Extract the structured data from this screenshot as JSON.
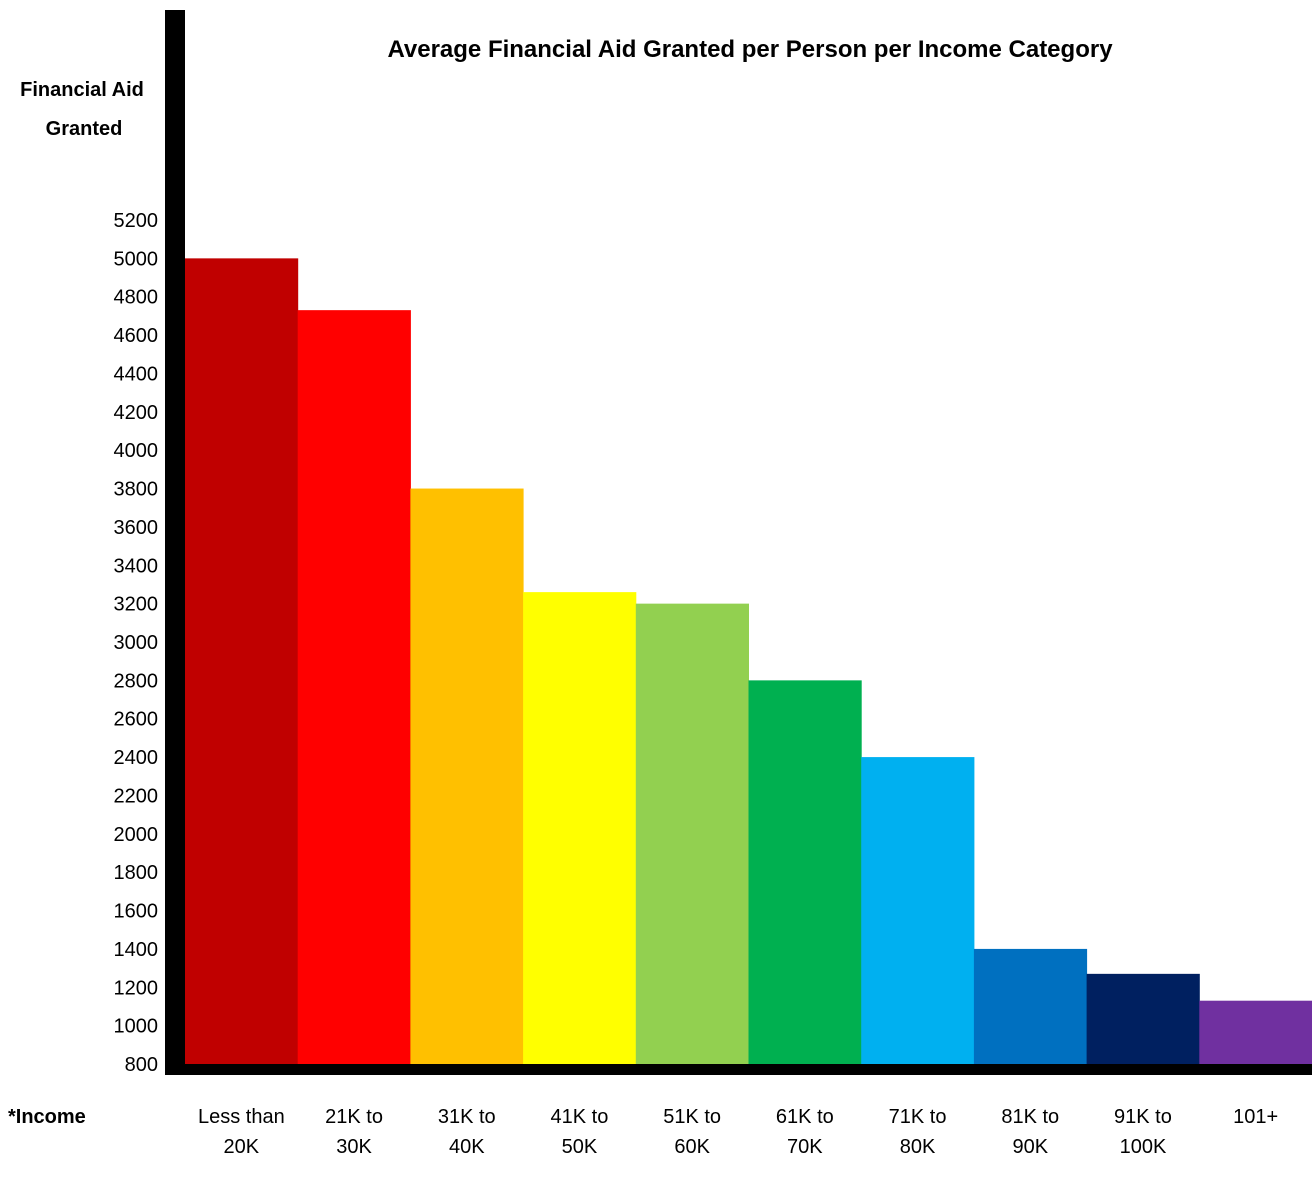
{
  "chart_data": {
    "type": "bar",
    "title": "Average Financial Aid Granted per Person per Income Category",
    "ylabel_lines": [
      "Financial Aid",
      "Granted"
    ],
    "xlabel": "*Income",
    "categories": [
      [
        "Less than",
        "20K"
      ],
      [
        "21K to",
        "30K"
      ],
      [
        "31K to",
        "40K"
      ],
      [
        "41K to",
        "50K"
      ],
      [
        "51K to",
        "60K"
      ],
      [
        "61K to",
        "70K"
      ],
      [
        "71K to",
        "80K"
      ],
      [
        "81K to",
        "90K"
      ],
      [
        "91K to",
        "100K"
      ],
      [
        "101+"
      ]
    ],
    "values": [
      5000,
      4730,
      3800,
      3260,
      3200,
      2800,
      2400,
      1400,
      1270,
      1130
    ],
    "colors": [
      "#C00000",
      "#FF0000",
      "#FFC000",
      "#FFFF00",
      "#92D050",
      "#00B050",
      "#00B0F0",
      "#0070C0",
      "#002060",
      "#7030A0"
    ],
    "ylim": [
      800,
      5200
    ],
    "yticks": [
      800,
      1000,
      1200,
      1400,
      1600,
      1800,
      2000,
      2200,
      2400,
      2600,
      2800,
      3000,
      3200,
      3400,
      3600,
      3800,
      4000,
      4200,
      4400,
      4600,
      4800,
      5000,
      5200
    ],
    "grid": false,
    "legend": false
  }
}
